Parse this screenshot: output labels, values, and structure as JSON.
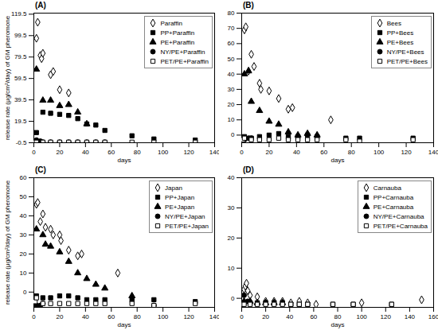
{
  "chart_data": [
    {
      "type": "scatter",
      "title": "(A)",
      "x_label": "days",
      "y_label": "release rate (μg/cm²/day) of GM pheromone",
      "xlim": [
        0,
        140
      ],
      "xticks": [
        0,
        20,
        40,
        60,
        80,
        100,
        120,
        140
      ],
      "ylim": [
        -0.5,
        120.5
      ],
      "yticks": [
        -0.5,
        19.5,
        39.5,
        59.5,
        79.5,
        99.5,
        119.5
      ],
      "grid": false,
      "legend": "top-right",
      "series": [
        {
          "name": "Paraffin",
          "color": "#000000",
          "marker": "diamond-open",
          "x": [
            2,
            3,
            5,
            6,
            7,
            13,
            15,
            20,
            27
          ],
          "values": [
            97,
            112,
            81,
            78,
            83,
            63,
            66,
            49,
            46
          ]
        },
        {
          "name": "PP+Paraffin",
          "color": "#000000",
          "marker": "square",
          "x": [
            2,
            7,
            13,
            20,
            27,
            34,
            41,
            48,
            55,
            76,
            93,
            125
          ],
          "values": [
            9,
            28,
            27,
            26,
            25,
            22,
            17,
            16,
            11,
            6,
            3,
            2
          ]
        },
        {
          "name": "PE+Paraffin",
          "color": "#000000",
          "marker": "triangle",
          "x": [
            2,
            7,
            13,
            20,
            27,
            34,
            41
          ],
          "values": [
            68,
            39,
            39,
            34,
            35,
            28,
            17
          ]
        },
        {
          "name": "NY/PE+Paraffin",
          "color": "#000000",
          "marker": "circle",
          "x": [
            2,
            5,
            7,
            13,
            20,
            27,
            34,
            41,
            48,
            55
          ],
          "values": [
            2,
            1,
            0,
            0,
            0,
            0,
            0,
            0,
            0,
            0
          ]
        },
        {
          "name": "PET/PE+Paraffin",
          "color": "#000000",
          "marker": "square-open",
          "x": [
            1,
            2,
            7,
            13,
            20,
            27,
            34,
            41,
            48,
            55,
            76,
            93,
            125
          ],
          "values": [
            0,
            0,
            0,
            0,
            0,
            0,
            0,
            0,
            0,
            0,
            0,
            0,
            0
          ]
        }
      ]
    },
    {
      "type": "scatter",
      "title": "(B)",
      "x_label": "days",
      "xlim": [
        0,
        140
      ],
      "xticks": [
        0,
        20,
        40,
        60,
        80,
        100,
        120,
        140
      ],
      "ylim": [
        -5,
        80
      ],
      "yticks": [
        0,
        10,
        20,
        30,
        40,
        50,
        60,
        70,
        80
      ],
      "grid": false,
      "legend": "top-right",
      "series": [
        {
          "name": "Bees",
          "color": "#000000",
          "marker": "diamond-open",
          "x": [
            2,
            3,
            5,
            7,
            9,
            13,
            14,
            20,
            27,
            34,
            37,
            65
          ],
          "values": [
            69,
            71,
            42,
            53,
            45,
            34,
            30,
            29,
            24,
            17,
            18,
            10
          ]
        },
        {
          "name": "PP+Bees",
          "color": "#000000",
          "marker": "square",
          "x": [
            2,
            7,
            13,
            20,
            27,
            34,
            41,
            48,
            55,
            76,
            86,
            125
          ],
          "values": [
            -1,
            -2,
            -1,
            0,
            1,
            -1,
            -1,
            0,
            -1,
            -2,
            -2,
            -2
          ]
        },
        {
          "name": "PE+Bees",
          "color": "#000000",
          "marker": "triangle",
          "x": [
            2,
            5,
            7,
            13,
            20,
            27,
            34,
            41,
            48,
            55
          ],
          "values": [
            40,
            42,
            22,
            16,
            9,
            7,
            2,
            0,
            1,
            0
          ]
        },
        {
          "name": "NY/PE+Bees",
          "color": "#000000",
          "marker": "circle",
          "x": [
            2,
            5,
            7
          ],
          "values": [
            -3,
            -2,
            -2
          ]
        },
        {
          "name": "PET/PE+Bees",
          "color": "#000000",
          "marker": "square-open",
          "x": [
            1,
            2,
            7,
            13,
            20,
            27,
            34,
            41,
            48,
            55,
            76,
            86,
            125
          ],
          "values": [
            -3,
            -2,
            -3,
            -3,
            -3,
            -2,
            -3,
            -3,
            -3,
            -3,
            -3,
            -4,
            -3
          ]
        }
      ]
    },
    {
      "type": "scatter",
      "title": "(C)",
      "x_label": "days",
      "y_label": "release rate (μg/cm²/day) of GM pheromone",
      "xlim": [
        0,
        140
      ],
      "xticks": [
        0,
        20,
        40,
        60,
        80,
        100,
        120,
        140
      ],
      "ylim": [
        -8,
        60
      ],
      "yticks": [
        0,
        10,
        20,
        30,
        40,
        50,
        60
      ],
      "grid": false,
      "legend": "top-right",
      "series": [
        {
          "name": "Japan",
          "color": "#000000",
          "marker": "diamond-open",
          "x": [
            2,
            3,
            5,
            7,
            9,
            13,
            15,
            20,
            21,
            27,
            34,
            37,
            65
          ],
          "values": [
            46,
            47,
            37,
            41,
            34,
            33,
            30,
            30,
            27,
            22,
            19,
            20,
            10
          ]
        },
        {
          "name": "PP+Japan",
          "color": "#000000",
          "marker": "square",
          "x": [
            2,
            7,
            13,
            20,
            27,
            34,
            41,
            48,
            55,
            76,
            93,
            125
          ],
          "values": [
            -2,
            -3,
            -3,
            -2,
            -2,
            -3,
            -4,
            -4,
            -4,
            -4,
            -4,
            -5
          ]
        },
        {
          "name": "PE+Japan",
          "color": "#000000",
          "marker": "triangle",
          "x": [
            2,
            7,
            9,
            13,
            20,
            27,
            34,
            41,
            48,
            55,
            76
          ],
          "values": [
            33,
            30,
            25,
            24,
            21,
            16,
            10,
            7,
            4,
            2,
            -2
          ]
        },
        {
          "name": "NY/PE+Japan",
          "color": "#000000",
          "marker": "circle",
          "x": [
            2,
            5,
            7,
            93
          ],
          "values": [
            -7,
            -7,
            -6,
            -7
          ]
        },
        {
          "name": "PET/PE+Japan",
          "color": "#000000",
          "marker": "square-open",
          "x": [
            1,
            2,
            7,
            13,
            20,
            27,
            34,
            41,
            48,
            55,
            76,
            93,
            125
          ],
          "values": [
            -5,
            -3,
            -6,
            -6,
            -6,
            -6,
            -6,
            -6,
            -6,
            -6,
            -6,
            -7,
            -6
          ]
        }
      ]
    },
    {
      "type": "scatter",
      "title": "(D)",
      "x_label": "days",
      "xlim": [
        0,
        160
      ],
      "xticks": [
        0,
        20,
        40,
        60,
        80,
        100,
        120,
        140,
        160
      ],
      "ylim": [
        -3,
        40
      ],
      "yticks": [
        0,
        10,
        20,
        30,
        40
      ],
      "grid": false,
      "legend": "top-right",
      "series": [
        {
          "name": "Carnauba",
          "color": "#000000",
          "marker": "diamond-open",
          "x": [
            2,
            3,
            4,
            5,
            7,
            13,
            20,
            27,
            34,
            41,
            48,
            55,
            62,
            100,
            150
          ],
          "values": [
            3,
            4,
            5,
            2.5,
            1,
            0.5,
            -1,
            -1,
            -1,
            -1.5,
            -1,
            -1.5,
            -2,
            -1.5,
            -0.5
          ]
        },
        {
          "name": "PP+Carnauba",
          "color": "#000000",
          "marker": "square",
          "x": [
            2,
            7,
            13,
            20,
            27,
            34,
            41,
            48,
            55,
            76,
            93,
            125
          ],
          "values": [
            -1.5,
            -1.5,
            -1.5,
            -1.5,
            -1.5,
            -1.5,
            -2,
            -2,
            -2,
            -2,
            -2,
            -2
          ]
        },
        {
          "name": "PE+Carnauba",
          "color": "#000000",
          "marker": "triangle",
          "x": [
            2,
            7,
            13,
            20,
            27,
            34
          ],
          "values": [
            -1,
            -1,
            -1.5,
            -1.5,
            -1.5,
            -1.5
          ]
        },
        {
          "name": "NY/PE+Carnauba",
          "color": "#000000",
          "marker": "circle",
          "x": [
            2,
            5
          ],
          "values": [
            1,
            -1
          ]
        },
        {
          "name": "PET/PE+Carnauba",
          "color": "#000000",
          "marker": "square-open",
          "x": [
            1,
            2,
            7,
            13,
            20,
            27,
            34,
            41,
            48,
            55,
            76,
            93,
            125
          ],
          "values": [
            -2,
            -2,
            -2,
            -2,
            -2,
            -2,
            -2,
            -2,
            -2,
            -2,
            -2,
            -2,
            -2
          ]
        }
      ]
    }
  ]
}
